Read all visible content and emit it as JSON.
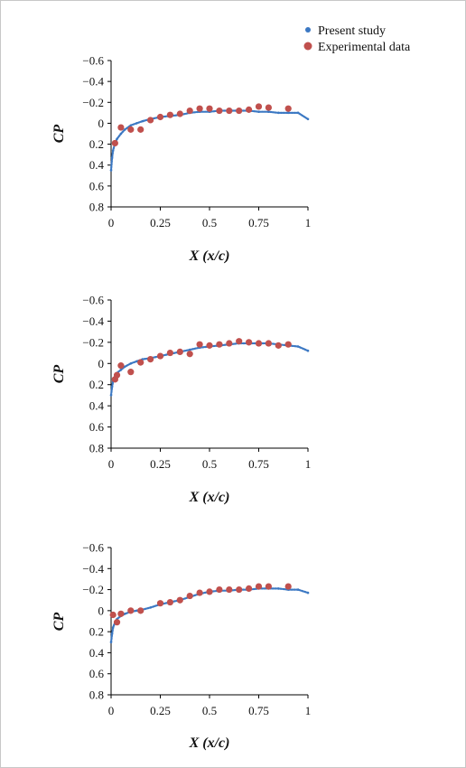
{
  "legend": {
    "items": [
      {
        "label": "Present study",
        "color": "#3b78c3"
      },
      {
        "label": "Experimental data",
        "color": "#c0504d"
      }
    ]
  },
  "chart_data": [
    {
      "type": "scatter",
      "xlabel": "X (x/c)",
      "ylabel": "CP",
      "xlim": [
        0,
        1
      ],
      "ylim": [
        -0.6,
        0.8
      ],
      "y_inverted": true,
      "x_ticks": [
        "0",
        "0.25",
        "0.5",
        "0.75",
        "1"
      ],
      "y_ticks": [
        "−0.6",
        "−0.4",
        "−0.2",
        "0",
        "0.2",
        "0.4",
        "0.6",
        "0.8"
      ],
      "x_tick_values": [
        0,
        0.25,
        0.5,
        0.75,
        1
      ],
      "y_tick_values": [
        -0.6,
        -0.4,
        -0.2,
        0,
        0.2,
        0.4,
        0.6,
        0.8
      ],
      "series": [
        {
          "name": "Present study",
          "color": "#3b78c3",
          "x": [
            0.0,
            0.005,
            0.01,
            0.02,
            0.03,
            0.05,
            0.07,
            0.1,
            0.13,
            0.16,
            0.2,
            0.25,
            0.3,
            0.35,
            0.4,
            0.45,
            0.5,
            0.55,
            0.6,
            0.65,
            0.7,
            0.75,
            0.8,
            0.85,
            0.9,
            0.95,
            1.0
          ],
          "y": [
            0.45,
            0.33,
            0.26,
            0.19,
            0.15,
            0.1,
            0.06,
            0.02,
            0.0,
            -0.02,
            -0.04,
            -0.06,
            -0.07,
            -0.08,
            -0.1,
            -0.11,
            -0.11,
            -0.12,
            -0.12,
            -0.12,
            -0.12,
            -0.11,
            -0.11,
            -0.1,
            -0.1,
            -0.1,
            -0.04
          ]
        },
        {
          "name": "Experimental data",
          "color": "#c0504d",
          "x": [
            0.02,
            0.05,
            0.1,
            0.15,
            0.2,
            0.25,
            0.3,
            0.35,
            0.4,
            0.45,
            0.5,
            0.55,
            0.6,
            0.65,
            0.7,
            0.75,
            0.8,
            0.9
          ],
          "y": [
            0.19,
            0.04,
            0.06,
            0.06,
            -0.03,
            -0.06,
            -0.08,
            -0.09,
            -0.12,
            -0.14,
            -0.14,
            -0.12,
            -0.12,
            -0.12,
            -0.13,
            -0.16,
            -0.15,
            -0.14
          ]
        }
      ]
    },
    {
      "type": "scatter",
      "xlabel": "X (x/c)",
      "ylabel": "CP",
      "xlim": [
        0,
        1
      ],
      "ylim": [
        -0.6,
        0.8
      ],
      "y_inverted": true,
      "x_ticks": [
        "0",
        "0.25",
        "0.5",
        "0.75",
        "1"
      ],
      "y_ticks": [
        "−0.6",
        "−0.4",
        "−0.2",
        "0",
        "0.2",
        "0.4",
        "0.6",
        "0.8"
      ],
      "x_tick_values": [
        0,
        0.25,
        0.5,
        0.75,
        1
      ],
      "y_tick_values": [
        -0.6,
        -0.4,
        -0.2,
        0,
        0.2,
        0.4,
        0.6,
        0.8
      ],
      "series": [
        {
          "name": "Present study",
          "color": "#3b78c3",
          "x": [
            0.0,
            0.005,
            0.01,
            0.02,
            0.03,
            0.05,
            0.07,
            0.1,
            0.13,
            0.16,
            0.2,
            0.25,
            0.3,
            0.35,
            0.4,
            0.45,
            0.5,
            0.55,
            0.6,
            0.65,
            0.7,
            0.75,
            0.8,
            0.85,
            0.9,
            0.95,
            1.0
          ],
          "y": [
            0.3,
            0.22,
            0.17,
            0.12,
            0.09,
            0.06,
            0.03,
            0.0,
            -0.02,
            -0.04,
            -0.05,
            -0.07,
            -0.09,
            -0.11,
            -0.13,
            -0.15,
            -0.16,
            -0.17,
            -0.18,
            -0.19,
            -0.19,
            -0.19,
            -0.19,
            -0.18,
            -0.17,
            -0.16,
            -0.12
          ]
        },
        {
          "name": "Experimental data",
          "color": "#c0504d",
          "x": [
            0.02,
            0.03,
            0.05,
            0.1,
            0.15,
            0.2,
            0.25,
            0.3,
            0.35,
            0.4,
            0.45,
            0.5,
            0.55,
            0.6,
            0.65,
            0.7,
            0.75,
            0.8,
            0.85,
            0.9
          ],
          "y": [
            0.15,
            0.11,
            0.02,
            0.08,
            -0.01,
            -0.04,
            -0.07,
            -0.1,
            -0.11,
            -0.09,
            -0.18,
            -0.17,
            -0.18,
            -0.19,
            -0.21,
            -0.2,
            -0.19,
            -0.19,
            -0.17,
            -0.18
          ]
        }
      ]
    },
    {
      "type": "scatter",
      "xlabel": "X (x/c)",
      "ylabel": "CP",
      "xlim": [
        0,
        1
      ],
      "ylim": [
        -0.6,
        0.8
      ],
      "y_inverted": true,
      "x_ticks": [
        "0",
        "0.25",
        "0.5",
        "0.75",
        "1"
      ],
      "y_ticks": [
        "−0.6",
        "−0.4",
        "−0.2",
        "0",
        "0.2",
        "0.4",
        "0.6",
        "0.8"
      ],
      "x_tick_values": [
        0,
        0.25,
        0.5,
        0.75,
        1
      ],
      "y_tick_values": [
        -0.6,
        -0.4,
        -0.2,
        0,
        0.2,
        0.4,
        0.6,
        0.8
      ],
      "series": [
        {
          "name": "Present study",
          "color": "#3b78c3",
          "x": [
            0.0,
            0.005,
            0.01,
            0.02,
            0.03,
            0.05,
            0.07,
            0.1,
            0.13,
            0.16,
            0.2,
            0.25,
            0.3,
            0.35,
            0.4,
            0.45,
            0.5,
            0.55,
            0.6,
            0.65,
            0.7,
            0.75,
            0.8,
            0.85,
            0.9,
            0.95,
            1.0
          ],
          "y": [
            0.3,
            0.22,
            0.16,
            0.11,
            0.08,
            0.05,
            0.03,
            0.01,
            0.0,
            -0.01,
            -0.03,
            -0.06,
            -0.08,
            -0.1,
            -0.13,
            -0.16,
            -0.18,
            -0.19,
            -0.19,
            -0.2,
            -0.2,
            -0.21,
            -0.21,
            -0.21,
            -0.2,
            -0.2,
            -0.17
          ]
        },
        {
          "name": "Experimental data",
          "color": "#c0504d",
          "x": [
            0.01,
            0.03,
            0.05,
            0.1,
            0.15,
            0.25,
            0.3,
            0.35,
            0.4,
            0.45,
            0.5,
            0.55,
            0.6,
            0.65,
            0.7,
            0.75,
            0.8,
            0.9
          ],
          "y": [
            0.04,
            0.11,
            0.03,
            0.0,
            0.0,
            -0.07,
            -0.08,
            -0.1,
            -0.14,
            -0.17,
            -0.18,
            -0.2,
            -0.2,
            -0.2,
            -0.21,
            -0.23,
            -0.23,
            -0.23
          ]
        }
      ]
    }
  ]
}
